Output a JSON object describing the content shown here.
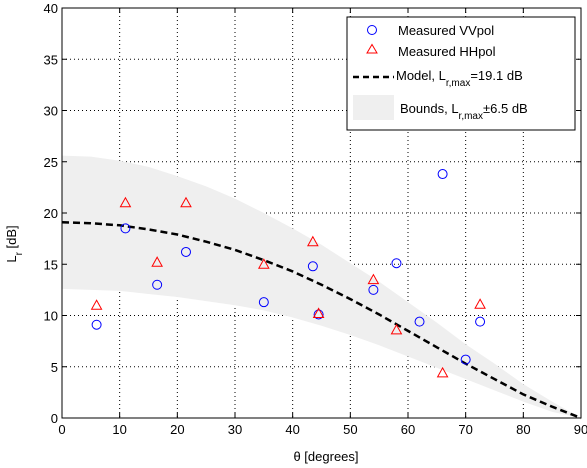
{
  "chart_data": {
    "type": "scatter",
    "xlabel": "θ [degrees]",
    "ylabel": {
      "main": "L",
      "sub": "r",
      "unit": " [dB]"
    },
    "xlim": [
      0,
      90
    ],
    "ylim": [
      0,
      40
    ],
    "xticks": [
      0,
      10,
      20,
      30,
      40,
      50,
      60,
      70,
      80,
      90
    ],
    "yticks": [
      0,
      5,
      10,
      15,
      20,
      25,
      30,
      35,
      40
    ],
    "grid": true,
    "grid_style": "dotted",
    "legend_position": "top-right",
    "series": [
      {
        "name": "Measured VVpol",
        "kind": "scatter",
        "marker": "circle",
        "color": "#0000ff",
        "x": [
          6,
          11,
          16.5,
          21.5,
          35,
          43.5,
          44.5,
          54,
          58,
          62,
          66,
          70,
          72.5
        ],
        "y": [
          9.1,
          18.5,
          13.0,
          16.2,
          11.3,
          14.8,
          10.1,
          12.5,
          15.1,
          9.4,
          23.8,
          5.7,
          9.4
        ]
      },
      {
        "name": "Measured HHpol",
        "kind": "scatter",
        "marker": "triangle",
        "color": "#ff0000",
        "x": [
          6,
          11,
          16.5,
          21.5,
          35,
          43.5,
          44.5,
          54,
          58,
          66,
          72.5
        ],
        "y": [
          11.0,
          21.0,
          15.2,
          21.0,
          15.0,
          17.2,
          10.2,
          13.5,
          8.6,
          4.4,
          11.1
        ]
      },
      {
        "name": "Model, L_r,max=19.1 dB",
        "label_parts": {
          "pre": "Model, L",
          "sub": "r,max",
          "post": "=19.1 dB"
        },
        "kind": "line",
        "style": "dashed",
        "color": "#000000",
        "x": [
          0,
          5,
          10,
          15,
          20,
          25,
          30,
          35,
          40,
          45,
          50,
          55,
          60,
          65,
          70,
          75,
          80,
          85,
          90
        ],
        "y": [
          19.1,
          19.0,
          18.8,
          18.4,
          17.9,
          17.2,
          16.4,
          15.4,
          14.3,
          13.0,
          11.6,
          10.1,
          8.5,
          6.9,
          5.3,
          3.8,
          2.3,
          1.1,
          0.0
        ]
      },
      {
        "name": "Bounds, L_r,max±6.5 dB",
        "label_parts": {
          "pre": "Bounds, L",
          "sub": "r,max",
          "post": "±6.5 dB"
        },
        "kind": "band",
        "color": "#efefef",
        "x": [
          0,
          5,
          10,
          15,
          20,
          25,
          30,
          35,
          40,
          45,
          50,
          55,
          60,
          65,
          70,
          75,
          80,
          85,
          90
        ],
        "upper": [
          25.6,
          25.5,
          25.1,
          24.5,
          23.6,
          22.6,
          21.4,
          20.0,
          18.5,
          16.9,
          15.1,
          13.3,
          11.3,
          9.3,
          7.2,
          5.3,
          3.3,
          1.6,
          0.0
        ],
        "lower": [
          12.6,
          12.5,
          12.4,
          12.1,
          11.8,
          11.4,
          11.0,
          10.5,
          9.8,
          9.0,
          8.1,
          7.1,
          6.0,
          4.9,
          3.8,
          2.7,
          1.6,
          0.6,
          0.0
        ]
      }
    ]
  }
}
